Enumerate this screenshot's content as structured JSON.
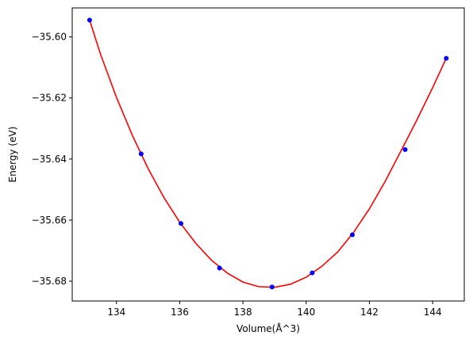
{
  "chart_data": {
    "type": "scatter",
    "title": "",
    "xlabel": "Volume(Å^3)",
    "ylabel": "Energy (eV)",
    "xlim": [
      132.6,
      145.0
    ],
    "ylim": [
      -35.6865,
      -35.5905
    ],
    "grid": false,
    "legend": "none",
    "x_ticks": [
      134,
      136,
      138,
      140,
      142,
      144
    ],
    "x_tick_labels": [
      "134",
      "136",
      "138",
      "140",
      "142",
      "144"
    ],
    "y_ticks": [
      -35.6,
      -35.62,
      -35.64,
      -35.66,
      -35.68
    ],
    "y_tick_labels": [
      "−35.60",
      "−35.62",
      "−35.64",
      "−35.66",
      "−35.68"
    ],
    "series": [
      {
        "kind": "points",
        "color": "#0000ff",
        "x": [
          133.15,
          134.78,
          136.04,
          137.26,
          138.92,
          140.19,
          141.46,
          143.13,
          144.43
        ],
        "y": [
          -35.5945,
          -35.6383,
          -35.6611,
          -35.6757,
          -35.6819,
          -35.6773,
          -35.6648,
          -35.6369,
          -35.607
        ]
      },
      {
        "kind": "line",
        "color": "#ff0000",
        "x": [
          133.15,
          133.5,
          134.0,
          134.5,
          135.0,
          135.5,
          136.0,
          136.5,
          137.0,
          137.5,
          138.0,
          138.5,
          139.0,
          139.5,
          140.0,
          140.5,
          141.0,
          141.5,
          142.0,
          142.5,
          143.0,
          143.5,
          144.0,
          144.43
        ],
        "y": [
          -35.5945,
          -35.6058,
          -35.6198,
          -35.6322,
          -35.6431,
          -35.6526,
          -35.6607,
          -35.6675,
          -35.6731,
          -35.6773,
          -35.6803,
          -35.6818,
          -35.682,
          -35.681,
          -35.6787,
          -35.6751,
          -35.6704,
          -35.664,
          -35.6563,
          -35.6473,
          -35.6373,
          -35.6272,
          -35.6166,
          -35.607
        ]
      }
    ]
  }
}
